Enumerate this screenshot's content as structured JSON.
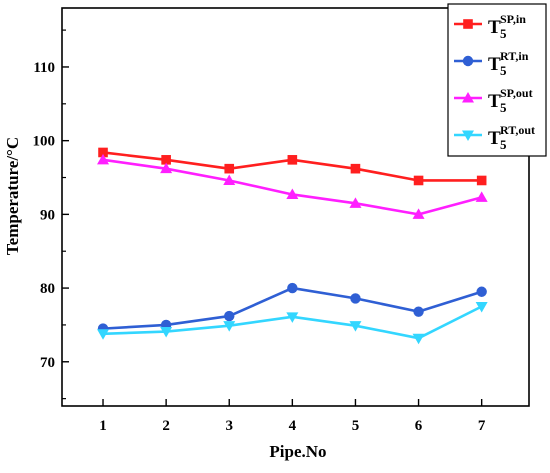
{
  "chart_data": {
    "type": "line",
    "xlabel": "Pipe.No",
    "ylabel": "Temperature/°C",
    "x": [
      1,
      2,
      3,
      4,
      5,
      6,
      7
    ],
    "xlim": [
      0.35,
      7.75
    ],
    "ylim": [
      64,
      118
    ],
    "xticks": [
      1,
      2,
      3,
      4,
      5,
      6,
      7
    ],
    "yticks": [
      70,
      80,
      90,
      100,
      110
    ],
    "grid": false,
    "legend_position": "top-right",
    "series": [
      {
        "key": "sp_in",
        "name": "T5SP,in",
        "legend_base": "T",
        "legend_sub": "5",
        "legend_sup": "SP,in",
        "color": "#ff1f1f",
        "marker": "square",
        "values": [
          98.4,
          97.4,
          96.2,
          97.4,
          96.2,
          94.6,
          94.6
        ]
      },
      {
        "key": "rt_in",
        "name": "T5RT,in",
        "legend_base": "T",
        "legend_sub": "5",
        "legend_sup": "RT,in",
        "color": "#2f5fd4",
        "marker": "circle",
        "values": [
          74.5,
          75.0,
          76.2,
          80.0,
          78.6,
          76.8,
          79.5
        ]
      },
      {
        "key": "sp_out",
        "name": "T5SP,out",
        "legend_base": "T",
        "legend_sub": "5",
        "legend_sup": "SP,out",
        "color": "#ff1fff",
        "marker": "triangle-up",
        "values": [
          97.4,
          96.2,
          94.6,
          92.7,
          91.5,
          90.0,
          92.3
        ]
      },
      {
        "key": "rt_out",
        "name": "T5RT,out",
        "legend_base": "T",
        "legend_sub": "5",
        "legend_sup": "RT,out",
        "color": "#33d6ff",
        "marker": "triangle-down",
        "values": [
          73.8,
          74.1,
          74.9,
          76.1,
          74.9,
          73.2,
          77.5
        ]
      }
    ]
  }
}
